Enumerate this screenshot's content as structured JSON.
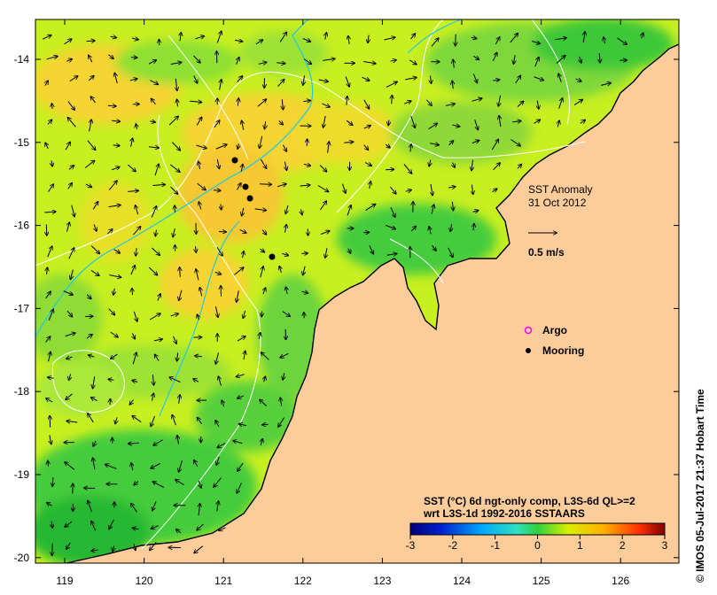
{
  "map": {
    "title_line1": "SST Anomaly",
    "title_line2": "31 Oct 2012",
    "scale_label": "0.5 m/s",
    "legend": {
      "argo_label": "Argo",
      "mooring_label": "Mooring",
      "argo_color": "#ff00ff",
      "mooring_color": "#000000"
    },
    "colorbar": {
      "caption_line1": "SST (°C) 6d ngt-only comp, L3S-6d QL>=2",
      "caption_line2": "wrt L3S-1d 1992-2016 SSTAARS",
      "tick_labels": [
        "-3",
        "-2",
        "-1",
        "0",
        "1",
        "2",
        "3"
      ],
      "colors": [
        "#00007a",
        "#0020d0",
        "#00a8ff",
        "#30e0c0",
        "#30d040",
        "#d8f000",
        "#ffb000",
        "#ff3000",
        "#800000"
      ]
    },
    "x_axis": {
      "tick_labels": [
        "119",
        "120",
        "121",
        "122",
        "123",
        "124",
        "125",
        "126"
      ]
    },
    "y_axis": {
      "tick_labels": [
        "-14",
        "-15",
        "-16",
        "-17",
        "-18",
        "-19",
        "-20"
      ]
    },
    "credit": "© IMOS 05-Jul-2017 21:37 Hobart Time",
    "colors": {
      "land": "#fccc9a",
      "ocean_base": "#c8ef20",
      "warm_patch": "#f6d430",
      "cool_patch": "#44cc3c",
      "deep_cool": "#26b830",
      "contour": "#ffffff",
      "bathy": "#22c8e0",
      "coastline": "#000000"
    }
  }
}
